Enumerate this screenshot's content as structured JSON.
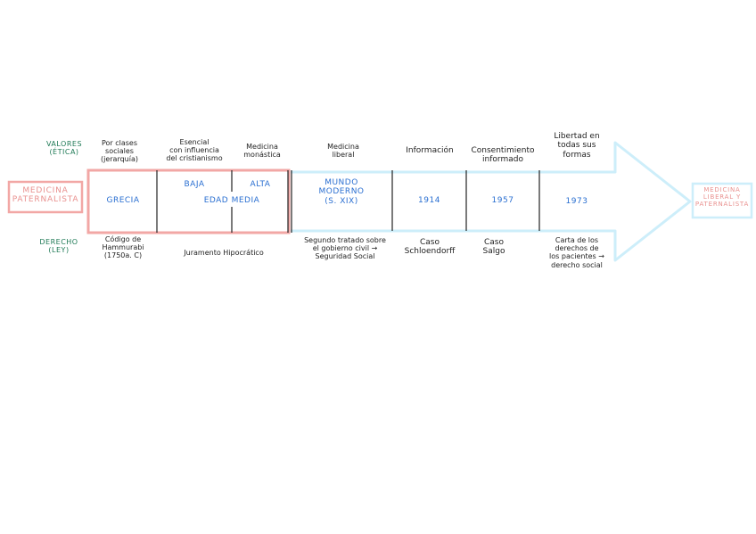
{
  "left_label": [
    "MEDICINA",
    "PATERNALISTA"
  ],
  "right_label": [
    "MEDICINA",
    "LIBERAL Y",
    "PATERNALISTA"
  ],
  "row_labels": {
    "valores": [
      "VALORES",
      "(ÉTICA)"
    ],
    "derecho": [
      "DERECHO",
      "(LEY)"
    ]
  },
  "top_texts": {
    "clases": [
      "Por clases",
      "sociales",
      "(jerarquía)"
    ],
    "esencial": [
      "Esencial",
      "con influencia",
      "del cristianismo"
    ],
    "monastica": [
      "Medicina",
      "monástica"
    ],
    "liberal": [
      "Medicina",
      "liberal"
    ],
    "informacion": [
      "Información"
    ],
    "consentimiento": [
      "Consentimiento",
      "informado"
    ],
    "libertad": [
      "Libertad en",
      "todas sus",
      "formas"
    ]
  },
  "cells": {
    "grecia": "GRECIA",
    "baja": "BAJA",
    "alta": "ALTA",
    "edad_media": "EDAD MEDIA",
    "mundo": [
      "MUNDO",
      "MODERNO",
      "(S. XIX)"
    ],
    "y1914": "1914",
    "y1957": "1957",
    "y1973": "1973"
  },
  "bottom_texts": {
    "codigo": [
      "Código de",
      "Hammurabi",
      "(1750a. C)"
    ],
    "juramento": [
      "Juramento Hipocrático"
    ],
    "segundo": [
      "Segundo tratado sobre",
      "el gobierno civil →",
      "Seguridad Social"
    ],
    "schloendorff": [
      "Caso",
      "Schloendorff"
    ],
    "salgo": [
      "Caso",
      "Salgo"
    ],
    "carta": [
      "Carta de los",
      "derechos de",
      "los pacientes →",
      "derecho social"
    ]
  },
  "colors": {
    "pink": "#f2a7a5",
    "light_blue": "#cdeefa",
    "dark": "#222222",
    "green": "#1f7a56",
    "blue": "#2a6fd1"
  }
}
